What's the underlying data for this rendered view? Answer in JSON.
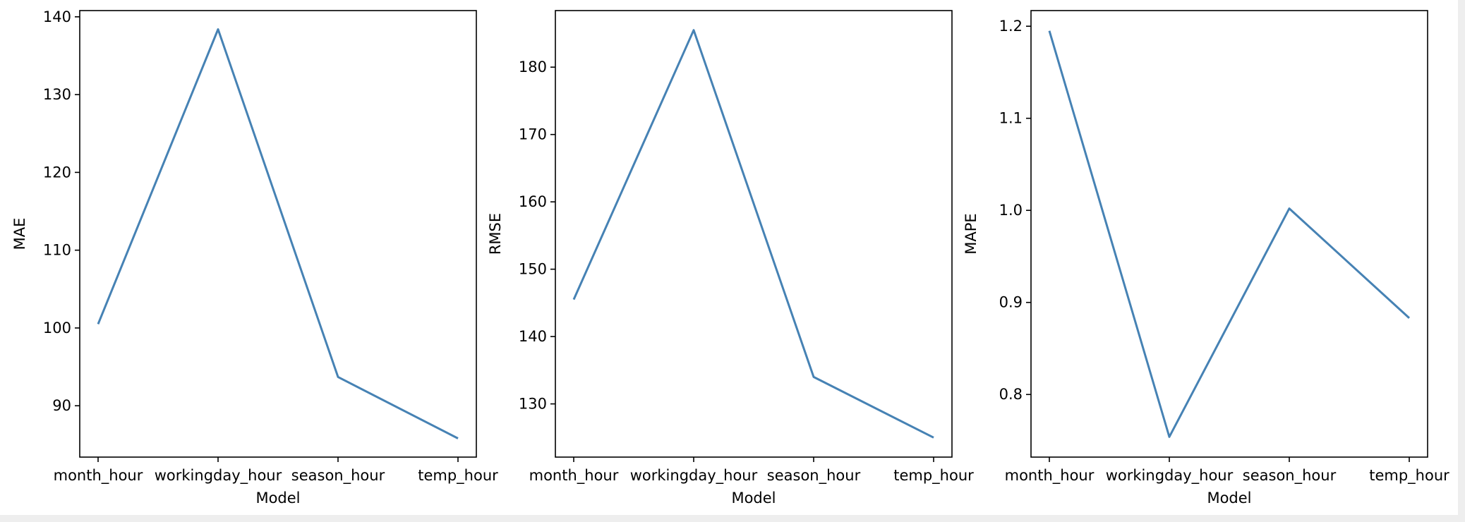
{
  "chart_data": [
    {
      "type": "line",
      "categories": [
        "month_hour",
        "workingday_hour",
        "season_hour",
        "temp_hour"
      ],
      "values": [
        100.5,
        138.4,
        93.7,
        85.8
      ],
      "xlabel": "Model",
      "ylabel": "MAE",
      "ylim": [
        83.4,
        140.8
      ],
      "yticks": [
        90,
        100,
        110,
        120,
        130,
        140
      ],
      "grid": false,
      "line_color": "#4682b4"
    },
    {
      "type": "line",
      "categories": [
        "month_hour",
        "workingday_hour",
        "season_hour",
        "temp_hour"
      ],
      "values": [
        145.5,
        185.5,
        134.0,
        125.0
      ],
      "xlabel": "Model",
      "ylabel": "RMSE",
      "ylim": [
        122.1,
        188.4
      ],
      "yticks": [
        130,
        140,
        150,
        160,
        170,
        180
      ],
      "grid": false,
      "line_color": "#4682b4"
    },
    {
      "type": "line",
      "categories": [
        "month_hour",
        "workingday_hour",
        "season_hour",
        "temp_hour"
      ],
      "values": [
        1.195,
        0.754,
        1.002,
        0.883
      ],
      "xlabel": "Model",
      "ylabel": "MAPE",
      "ylim": [
        0.732,
        1.217
      ],
      "yticks": [
        0.8,
        0.9,
        1.0,
        1.1,
        1.2
      ],
      "ytick_labels": [
        "0.8",
        "0.9",
        "1.0",
        "1.1",
        "1.2"
      ],
      "grid": false,
      "line_color": "#4682b4"
    }
  ]
}
